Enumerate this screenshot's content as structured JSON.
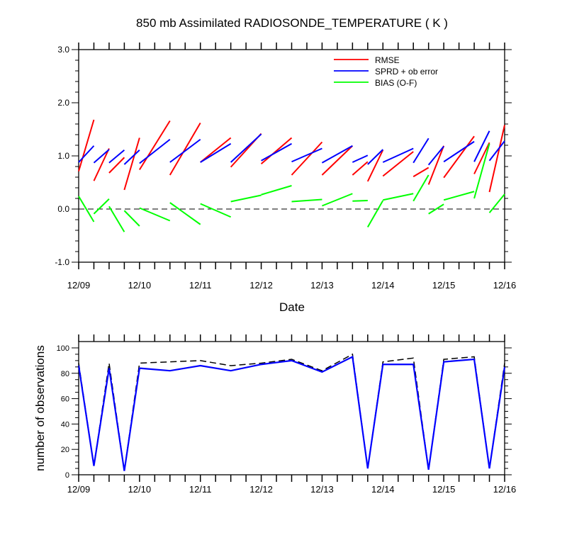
{
  "chart_data": [
    {
      "type": "line",
      "title": "850 mb Assimilated RADIOSONDE_TEMPERATURE ( K )",
      "xlabel": "Date",
      "ylabel": "",
      "xlim": [
        "12/09 00Z",
        "12/16 00Z"
      ],
      "ylim": [
        -1.0,
        3.0
      ],
      "yticks": [
        "-1.0",
        "0.0",
        "1.0",
        "2.0",
        "3.0"
      ],
      "xticks": [
        "12/09",
        "12/10",
        "12/11",
        "12/12",
        "12/13",
        "12/14",
        "12/15",
        "12/16"
      ],
      "reference_line": 0.0,
      "legend_position": "top-right",
      "series": [
        {
          "name": "RMSE",
          "color": "#ff0000",
          "segments": [
            [
              [
                0,
                0.71
              ],
              [
                0.25,
                1.68
              ]
            ],
            [
              [
                0.25,
                0.53
              ],
              [
                0.5,
                1.14
              ]
            ],
            [
              [
                0.5,
                0.68
              ],
              [
                0.75,
                0.97
              ]
            ],
            [
              [
                0.75,
                0.36
              ],
              [
                1.0,
                1.34
              ]
            ],
            [
              [
                1.0,
                0.74
              ],
              [
                1.5,
                1.66
              ]
            ],
            [
              [
                1.5,
                0.64
              ],
              [
                2.0,
                1.62
              ]
            ],
            [
              [
                2.0,
                0.88
              ],
              [
                2.5,
                1.34
              ]
            ],
            [
              [
                2.5,
                0.79
              ],
              [
                3.0,
                1.42
              ]
            ],
            [
              [
                3.0,
                0.85
              ],
              [
                3.5,
                1.34
              ]
            ],
            [
              [
                3.5,
                0.64
              ],
              [
                4.0,
                1.26
              ]
            ],
            [
              [
                4.0,
                0.64
              ],
              [
                4.5,
                1.19
              ]
            ],
            [
              [
                4.5,
                0.64
              ],
              [
                4.75,
                0.89
              ]
            ],
            [
              [
                4.75,
                0.52
              ],
              [
                5.0,
                1.11
              ]
            ],
            [
              [
                5.0,
                0.62
              ],
              [
                5.5,
                1.08
              ]
            ],
            [
              [
                5.5,
                0.61
              ],
              [
                5.75,
                0.78
              ]
            ],
            [
              [
                5.75,
                0.46
              ],
              [
                6.0,
                1.19
              ]
            ],
            [
              [
                6.0,
                0.59
              ],
              [
                6.5,
                1.37
              ]
            ],
            [
              [
                6.5,
                0.66
              ],
              [
                6.75,
                1.25
              ]
            ],
            [
              [
                6.75,
                0.32
              ],
              [
                7.0,
                1.58
              ]
            ]
          ]
        },
        {
          "name": "SPRD + ob error",
          "color": "#0000ff",
          "segments": [
            [
              [
                0,
                0.88
              ],
              [
                0.25,
                1.19
              ]
            ],
            [
              [
                0.25,
                0.87
              ],
              [
                0.5,
                1.12
              ]
            ],
            [
              [
                0.5,
                0.87
              ],
              [
                0.75,
                1.11
              ]
            ],
            [
              [
                0.75,
                0.84
              ],
              [
                1.0,
                1.11
              ]
            ],
            [
              [
                1.0,
                0.86
              ],
              [
                1.5,
                1.31
              ]
            ],
            [
              [
                1.5,
                0.88
              ],
              [
                2.0,
                1.31
              ]
            ],
            [
              [
                2.0,
                0.88
              ],
              [
                2.5,
                1.23
              ]
            ],
            [
              [
                2.5,
                0.88
              ],
              [
                3.0,
                1.41
              ]
            ],
            [
              [
                3.0,
                0.91
              ],
              [
                3.5,
                1.23
              ]
            ],
            [
              [
                3.5,
                0.89
              ],
              [
                4.0,
                1.14
              ]
            ],
            [
              [
                4.0,
                0.87
              ],
              [
                4.5,
                1.19
              ]
            ],
            [
              [
                4.5,
                0.88
              ],
              [
                4.75,
                1.01
              ]
            ],
            [
              [
                4.75,
                0.84
              ],
              [
                5.0,
                1.12
              ]
            ],
            [
              [
                5.0,
                0.88
              ],
              [
                5.5,
                1.14
              ]
            ],
            [
              [
                5.5,
                0.87
              ],
              [
                5.75,
                1.33
              ]
            ],
            [
              [
                5.75,
                0.83
              ],
              [
                6.0,
                1.18
              ]
            ],
            [
              [
                6.0,
                0.89
              ],
              [
                6.5,
                1.27
              ]
            ],
            [
              [
                6.5,
                0.89
              ],
              [
                6.75,
                1.47
              ]
            ],
            [
              [
                6.75,
                0.91
              ],
              [
                7.0,
                1.28
              ]
            ]
          ]
        },
        {
          "name": "BIAS (O-F)",
          "color": "#00ff00",
          "segments": [
            [
              [
                0,
                0.24
              ],
              [
                0.25,
                -0.24
              ]
            ],
            [
              [
                0.25,
                -0.09
              ],
              [
                0.5,
                0.19
              ]
            ],
            [
              [
                0.5,
                0.05
              ],
              [
                0.75,
                -0.43
              ]
            ],
            [
              [
                0.75,
                -0.03
              ],
              [
                1.0,
                -0.32
              ]
            ],
            [
              [
                1.0,
                0.02
              ],
              [
                1.5,
                -0.22
              ]
            ],
            [
              [
                1.5,
                0.12
              ],
              [
                2.0,
                -0.29
              ]
            ],
            [
              [
                2.0,
                0.1
              ],
              [
                2.5,
                -0.15
              ]
            ],
            [
              [
                2.5,
                0.14
              ],
              [
                3.0,
                0.26
              ]
            ],
            [
              [
                3.0,
                0.27
              ],
              [
                3.5,
                0.44
              ]
            ],
            [
              [
                3.5,
                0.14
              ],
              [
                4.0,
                0.18
              ]
            ],
            [
              [
                4.0,
                0.06
              ],
              [
                4.5,
                0.29
              ]
            ],
            [
              [
                4.5,
                0.15
              ],
              [
                4.75,
                0.16
              ]
            ],
            [
              [
                4.75,
                -0.34
              ],
              [
                5.0,
                0.16
              ]
            ],
            [
              [
                5.0,
                0.17
              ],
              [
                5.5,
                0.29
              ]
            ],
            [
              [
                5.5,
                0.15
              ],
              [
                5.75,
                0.64
              ]
            ],
            [
              [
                5.75,
                -0.09
              ],
              [
                6.0,
                0.09
              ]
            ],
            [
              [
                6.0,
                0.17
              ],
              [
                6.5,
                0.33
              ]
            ],
            [
              [
                6.5,
                0.2
              ],
              [
                6.75,
                1.23
              ]
            ],
            [
              [
                6.75,
                -0.07
              ],
              [
                7.0,
                0.28
              ]
            ]
          ]
        }
      ]
    },
    {
      "type": "line",
      "title": "",
      "xlabel": "",
      "ylabel": "number of observations",
      "xlim": [
        "12/09 00Z",
        "12/16 00Z"
      ],
      "ylim": [
        0,
        105
      ],
      "yticks": [
        "0",
        "20",
        "40",
        "60",
        "80",
        "100"
      ],
      "xticks": [
        "12/09",
        "12/10",
        "12/11",
        "12/12",
        "12/13",
        "12/14",
        "12/15",
        "12/16"
      ],
      "series": [
        {
          "name": "",
          "color": "#000000",
          "style": "dashed",
          "x": [
            0,
            0.25,
            0.5,
            0.75,
            1.0,
            1.5,
            2.0,
            2.5,
            3.0,
            3.5,
            4.0,
            4.5,
            4.75,
            5.0,
            5.5,
            5.75,
            6.0,
            6.5,
            6.75,
            7.0
          ],
          "values": [
            88,
            7,
            88,
            3,
            88,
            89,
            90,
            86,
            88,
            91,
            82,
            95,
            5,
            89,
            92,
            4,
            91,
            93,
            5,
            88
          ]
        },
        {
          "name": "",
          "color": "#0000ff",
          "style": "solid",
          "x": [
            0,
            0.25,
            0.5,
            0.75,
            1.0,
            1.5,
            2.0,
            2.5,
            3.0,
            3.5,
            4.0,
            4.5,
            4.75,
            5.0,
            5.5,
            5.75,
            6.0,
            6.5,
            6.75,
            7.0
          ],
          "values": [
            86,
            7,
            84,
            3,
            84,
            82,
            86,
            82,
            87,
            90,
            81,
            93,
            5,
            87,
            87,
            4,
            89,
            91,
            5,
            85
          ]
        }
      ]
    }
  ]
}
